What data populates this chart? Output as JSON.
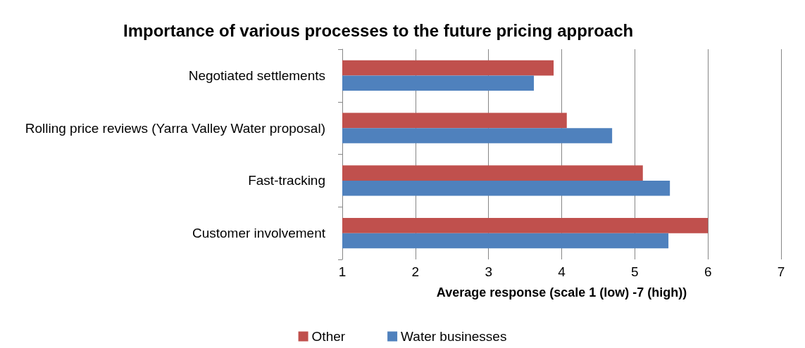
{
  "chart_data": {
    "type": "bar",
    "orientation": "horizontal",
    "title": "Importance of various processes to the future pricing approach",
    "xlabel": "Average response (scale 1 (low) -7 (high))",
    "categories": [
      "Negotiated settlements",
      "Rolling price reviews (Yarra Valley Water proposal)",
      "Fast-tracking",
      "Customer involvement"
    ],
    "series": [
      {
        "name": "Other",
        "color": "#c0504d",
        "values": [
          3.89,
          4.07,
          5.11,
          6.0
        ]
      },
      {
        "name": "Water businesses",
        "color": "#4f81bd",
        "values": [
          3.62,
          4.69,
          5.48,
          5.46
        ]
      }
    ],
    "xlim": [
      1,
      7
    ],
    "xticks": [
      1,
      2,
      3,
      4,
      5,
      6,
      7
    ],
    "grid": "x",
    "legend": "bottom"
  }
}
